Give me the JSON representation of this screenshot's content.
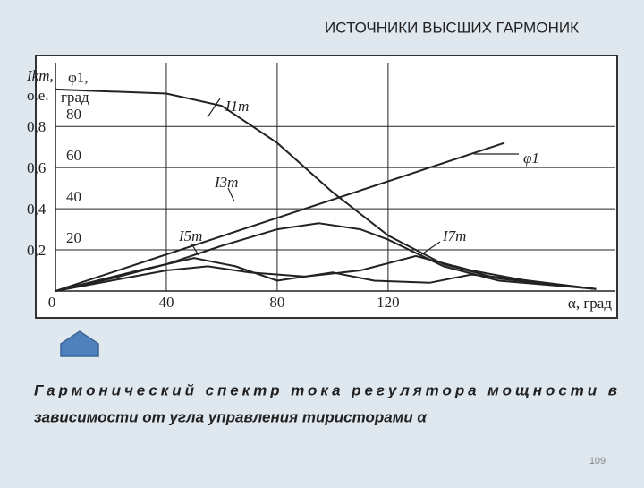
{
  "slide": {
    "title": "ИСТОЧНИКИ ВЫСШИХ ГАРМОНИК",
    "caption_line1": "Гармонический спектр тока регулятора мощности в",
    "caption_line2": "зависимости от угла управления тиристорами α",
    "page_number": "109"
  },
  "chart_data": {
    "type": "line",
    "ylabel_line1": "Ikm,",
    "ylabel_line2": "о.е.",
    "y2label_line1": "φ1,",
    "y2label_line2": "град",
    "xlabel": "α, град",
    "xlim": [
      0,
      202
    ],
    "xticks": [
      0,
      40,
      80,
      120
    ],
    "ylim": [
      0,
      1.11
    ],
    "yticks": [
      {
        "value": 0.2,
        "label": "0,2"
      },
      {
        "value": 0.4,
        "label": "0,4"
      },
      {
        "value": 0.6,
        "label": "0,6"
      },
      {
        "value": 0.8,
        "label": "0,8"
      }
    ],
    "y2lim": [
      0,
      111
    ],
    "y2ticks": [
      20,
      40,
      60,
      80
    ],
    "grid": true,
    "series": [
      {
        "name": "I1m",
        "color": "#222222",
        "x": [
          0,
          20,
          40,
          60,
          80,
          100,
          120,
          140,
          160,
          195
        ],
        "values": [
          0.98,
          0.97,
          0.96,
          0.9,
          0.72,
          0.48,
          0.27,
          0.13,
          0.06,
          0.01
        ]
      },
      {
        "name": "φ1",
        "color": "#222222",
        "axis": "y2",
        "x": [
          0,
          162
        ],
        "values": [
          0,
          72
        ]
      },
      {
        "name": "I3m",
        "color": "#222222",
        "x": [
          0,
          20,
          40,
          60,
          80,
          95,
          110,
          120,
          140,
          160,
          195
        ],
        "values": [
          0,
          0.06,
          0.13,
          0.22,
          0.3,
          0.33,
          0.3,
          0.25,
          0.12,
          0.05,
          0.01
        ]
      },
      {
        "name": "I5m",
        "color": "#222222",
        "x": [
          0,
          20,
          40,
          55,
          70,
          90,
          110,
          130,
          150,
          170,
          195
        ],
        "values": [
          0,
          0.05,
          0.1,
          0.12,
          0.09,
          0.07,
          0.1,
          0.17,
          0.1,
          0.05,
          0.01
        ]
      },
      {
        "name": "I7m",
        "color": "#222222",
        "x": [
          0,
          30,
          50,
          65,
          80,
          100,
          115,
          135,
          150,
          165,
          195
        ],
        "values": [
          0,
          0.1,
          0.16,
          0.12,
          0.05,
          0.09,
          0.05,
          0.04,
          0.08,
          0.06,
          0.01
        ]
      }
    ]
  }
}
